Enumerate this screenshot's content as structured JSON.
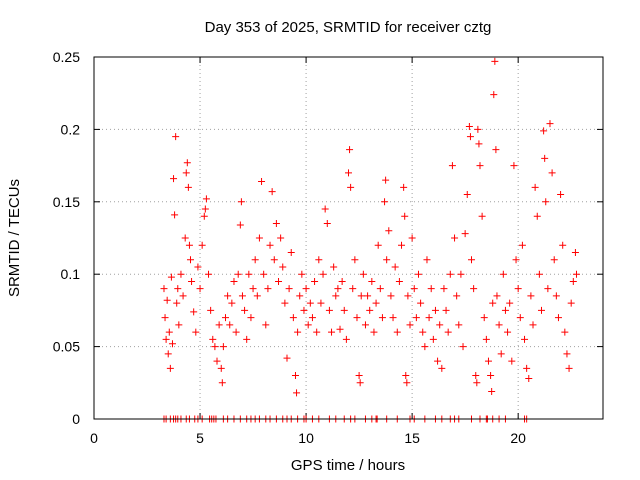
{
  "chart_data": {
    "type": "scatter",
    "title": "Day 353 of 2025, SRMTID for receiver cztg",
    "xlabel": "GPS time / hours",
    "ylabel": "SRMTID / TECUs",
    "xlim": [
      0,
      24
    ],
    "ylim": [
      0,
      0.25
    ],
    "x_ticks": [
      "0",
      "5",
      "10",
      "15",
      "20"
    ],
    "y_ticks": [
      "0",
      "0.05",
      "0.1",
      "0.15",
      "0.2",
      "0.25"
    ],
    "grid": true,
    "legend": "none",
    "marker": "plus",
    "color": "#ff0000",
    "series": [
      {
        "points": [
          [
            3.3,
            0.09
          ],
          [
            3.35,
            0.07
          ],
          [
            3.4,
            0.055
          ],
          [
            3.45,
            0.082
          ],
          [
            3.5,
            0.045
          ],
          [
            3.55,
            0.06
          ],
          [
            3.6,
            0.035
          ],
          [
            3.65,
            0.098
          ],
          [
            3.7,
            0.052
          ],
          [
            3.75,
            0.166
          ],
          [
            3.8,
            0.141
          ],
          [
            3.85,
            0.195
          ],
          [
            3.9,
            0.08
          ],
          [
            3.95,
            0.09
          ],
          [
            4.0,
            0.065
          ],
          [
            4.1,
            0.1
          ],
          [
            4.2,
            0.085
          ],
          [
            4.3,
            0.125
          ],
          [
            4.35,
            0.17
          ],
          [
            4.4,
            0.177
          ],
          [
            4.45,
            0.16
          ],
          [
            4.5,
            0.12
          ],
          [
            4.55,
            0.11
          ],
          [
            4.6,
            0.095
          ],
          [
            4.7,
            0.074
          ],
          [
            4.8,
            0.06
          ],
          [
            4.9,
            0.105
          ],
          [
            5.0,
            0.09
          ],
          [
            5.1,
            0.12
          ],
          [
            5.2,
            0.14
          ],
          [
            5.25,
            0.145
          ],
          [
            5.3,
            0.152
          ],
          [
            5.4,
            0.1
          ],
          [
            5.5,
            0.075
          ],
          [
            5.6,
            0.055
          ],
          [
            5.7,
            0.05
          ],
          [
            5.8,
            0.04
          ],
          [
            5.9,
            0.065
          ],
          [
            6.0,
            0.035
          ],
          [
            6.05,
            0.025
          ],
          [
            6.1,
            0.05
          ],
          [
            6.2,
            0.07
          ],
          [
            6.3,
            0.085
          ],
          [
            6.4,
            0.065
          ],
          [
            6.5,
            0.08
          ],
          [
            6.6,
            0.095
          ],
          [
            6.7,
            0.06
          ],
          [
            6.8,
            0.1
          ],
          [
            6.9,
            0.134
          ],
          [
            6.95,
            0.15
          ],
          [
            7.0,
            0.085
          ],
          [
            7.1,
            0.075
          ],
          [
            7.2,
            0.055
          ],
          [
            7.3,
            0.1
          ],
          [
            7.4,
            0.07
          ],
          [
            7.5,
            0.09
          ],
          [
            7.6,
            0.11
          ],
          [
            7.7,
            0.085
          ],
          [
            7.8,
            0.125
          ],
          [
            7.9,
            0.164
          ],
          [
            8.0,
            0.1
          ],
          [
            8.1,
            0.065
          ],
          [
            8.2,
            0.09
          ],
          [
            8.3,
            0.12
          ],
          [
            8.4,
            0.157
          ],
          [
            8.5,
            0.11
          ],
          [
            8.6,
            0.135
          ],
          [
            8.7,
            0.095
          ],
          [
            8.8,
            0.125
          ],
          [
            8.9,
            0.105
          ],
          [
            9.0,
            0.08
          ],
          [
            9.1,
            0.042
          ],
          [
            9.2,
            0.09
          ],
          [
            9.3,
            0.115
          ],
          [
            9.4,
            0.07
          ],
          [
            9.5,
            0.03
          ],
          [
            9.55,
            0.018
          ],
          [
            9.6,
            0.06
          ],
          [
            9.7,
            0.085
          ],
          [
            9.8,
            0.1
          ],
          [
            9.9,
            0.075
          ],
          [
            10.0,
            0.09
          ],
          [
            10.1,
            0.065
          ],
          [
            10.2,
            0.08
          ],
          [
            10.3,
            0.07
          ],
          [
            10.4,
            0.095
          ],
          [
            10.5,
            0.06
          ],
          [
            10.6,
            0.11
          ],
          [
            10.7,
            0.08
          ],
          [
            10.8,
            0.1
          ],
          [
            10.9,
            0.145
          ],
          [
            11.0,
            0.135
          ],
          [
            11.1,
            0.075
          ],
          [
            11.2,
            0.06
          ],
          [
            11.3,
            0.105
          ],
          [
            11.4,
            0.085
          ],
          [
            11.5,
            0.09
          ],
          [
            11.6,
            0.062
          ],
          [
            11.7,
            0.095
          ],
          [
            11.8,
            0.075
          ],
          [
            11.9,
            0.055
          ],
          [
            12.0,
            0.17
          ],
          [
            12.05,
            0.186
          ],
          [
            12.1,
            0.16
          ],
          [
            12.2,
            0.09
          ],
          [
            12.3,
            0.11
          ],
          [
            12.4,
            0.07
          ],
          [
            12.5,
            0.03
          ],
          [
            12.55,
            0.025
          ],
          [
            12.6,
            0.085
          ],
          [
            12.7,
            0.1
          ],
          [
            12.8,
            0.065
          ],
          [
            12.9,
            0.085
          ],
          [
            13.0,
            0.075
          ],
          [
            13.1,
            0.095
          ],
          [
            13.2,
            0.06
          ],
          [
            13.3,
            0.08
          ],
          [
            13.4,
            0.12
          ],
          [
            13.5,
            0.09
          ],
          [
            13.6,
            0.07
          ],
          [
            13.7,
            0.15
          ],
          [
            13.75,
            0.165
          ],
          [
            13.8,
            0.11
          ],
          [
            13.9,
            0.13
          ],
          [
            14.0,
            0.085
          ],
          [
            14.1,
            0.07
          ],
          [
            14.2,
            0.105
          ],
          [
            14.3,
            0.06
          ],
          [
            14.4,
            0.095
          ],
          [
            14.5,
            0.12
          ],
          [
            14.6,
            0.16
          ],
          [
            14.65,
            0.14
          ],
          [
            14.7,
            0.03
          ],
          [
            14.75,
            0.025
          ],
          [
            14.8,
            0.085
          ],
          [
            14.9,
            0.065
          ],
          [
            15.0,
            0.125
          ],
          [
            15.1,
            0.09
          ],
          [
            15.2,
            0.07
          ],
          [
            15.3,
            0.1
          ],
          [
            15.4,
            0.08
          ],
          [
            15.5,
            0.06
          ],
          [
            15.6,
            0.05
          ],
          [
            15.7,
            0.11
          ],
          [
            15.8,
            0.07
          ],
          [
            15.9,
            0.09
          ],
          [
            16.0,
            0.055
          ],
          [
            16.1,
            0.075
          ],
          [
            16.2,
            0.04
          ],
          [
            16.3,
            0.065
          ],
          [
            16.4,
            0.035
          ],
          [
            16.5,
            0.09
          ],
          [
            16.6,
            0.075
          ],
          [
            16.7,
            0.06
          ],
          [
            16.8,
            0.1
          ],
          [
            16.9,
            0.175
          ],
          [
            17.0,
            0.125
          ],
          [
            17.1,
            0.085
          ],
          [
            17.2,
            0.065
          ],
          [
            17.3,
            0.1
          ],
          [
            17.4,
            0.05
          ],
          [
            17.5,
            0.128
          ],
          [
            17.6,
            0.155
          ],
          [
            17.7,
            0.202
          ],
          [
            17.75,
            0.195
          ],
          [
            17.8,
            0.11
          ],
          [
            17.9,
            0.09
          ],
          [
            18.0,
            0.03
          ],
          [
            18.05,
            0.025
          ],
          [
            18.1,
            0.2
          ],
          [
            18.15,
            0.19
          ],
          [
            18.2,
            0.175
          ],
          [
            18.3,
            0.14
          ],
          [
            18.4,
            0.07
          ],
          [
            18.5,
            0.055
          ],
          [
            18.6,
            0.04
          ],
          [
            18.7,
            0.03
          ],
          [
            18.75,
            0.019
          ],
          [
            18.8,
            0.08
          ],
          [
            18.85,
            0.224
          ],
          [
            18.9,
            0.247
          ],
          [
            18.95,
            0.186
          ],
          [
            19.0,
            0.085
          ],
          [
            19.1,
            0.065
          ],
          [
            19.2,
            0.045
          ],
          [
            19.3,
            0.1
          ],
          [
            19.4,
            0.075
          ],
          [
            19.5,
            0.06
          ],
          [
            19.6,
            0.08
          ],
          [
            19.7,
            0.04
          ],
          [
            19.8,
            0.175
          ],
          [
            19.9,
            0.11
          ],
          [
            20.0,
            0.09
          ],
          [
            20.1,
            0.07
          ],
          [
            20.2,
            0.12
          ],
          [
            20.3,
            0.055
          ],
          [
            20.4,
            0.035
          ],
          [
            20.5,
            0.028
          ],
          [
            20.6,
            0.085
          ],
          [
            20.7,
            0.065
          ],
          [
            20.8,
            0.16
          ],
          [
            20.9,
            0.14
          ],
          [
            21.0,
            0.1
          ],
          [
            21.1,
            0.075
          ],
          [
            21.2,
            0.199
          ],
          [
            21.25,
            0.18
          ],
          [
            21.3,
            0.15
          ],
          [
            21.4,
            0.09
          ],
          [
            21.5,
            0.204
          ],
          [
            21.6,
            0.17
          ],
          [
            21.7,
            0.11
          ],
          [
            21.8,
            0.085
          ],
          [
            21.9,
            0.07
          ],
          [
            22.0,
            0.155
          ],
          [
            22.1,
            0.12
          ],
          [
            22.2,
            0.06
          ],
          [
            22.3,
            0.045
          ],
          [
            22.4,
            0.035
          ],
          [
            22.5,
            0.08
          ],
          [
            22.6,
            0.095
          ],
          [
            22.7,
            0.115
          ],
          [
            22.75,
            0.1
          ]
        ]
      },
      {
        "points": [
          [
            3.3,
            0
          ],
          [
            3.4,
            0
          ],
          [
            3.6,
            0
          ],
          [
            3.75,
            0
          ],
          [
            3.85,
            0
          ],
          [
            3.95,
            0
          ],
          [
            4.1,
            0
          ],
          [
            4.35,
            0
          ],
          [
            4.5,
            0
          ],
          [
            4.75,
            0
          ],
          [
            4.9,
            0
          ],
          [
            5.1,
            0
          ],
          [
            5.45,
            0
          ],
          [
            5.55,
            0
          ],
          [
            5.65,
            0
          ],
          [
            5.75,
            0
          ],
          [
            6.1,
            0
          ],
          [
            6.3,
            0
          ],
          [
            6.6,
            0
          ],
          [
            6.9,
            0
          ],
          [
            7.2,
            0
          ],
          [
            7.4,
            0
          ],
          [
            7.6,
            0
          ],
          [
            7.8,
            0
          ],
          [
            8.1,
            0
          ],
          [
            8.3,
            0
          ],
          [
            8.6,
            0
          ],
          [
            8.9,
            0
          ],
          [
            9.1,
            0
          ],
          [
            9.3,
            0
          ],
          [
            9.6,
            0
          ],
          [
            9.9,
            0
          ],
          [
            10.0,
            0
          ],
          [
            10.3,
            0
          ],
          [
            10.6,
            0
          ],
          [
            11.1,
            0
          ],
          [
            11.4,
            0
          ],
          [
            11.8,
            0
          ],
          [
            12.1,
            0
          ],
          [
            12.3,
            0
          ],
          [
            12.8,
            0
          ],
          [
            13.1,
            0
          ],
          [
            13.3,
            0
          ],
          [
            13.35,
            0
          ],
          [
            13.8,
            0
          ],
          [
            14.3,
            0
          ],
          [
            14.9,
            0
          ],
          [
            15.1,
            0
          ],
          [
            15.6,
            0
          ],
          [
            16.1,
            0
          ],
          [
            16.4,
            0
          ],
          [
            16.8,
            0
          ],
          [
            17.0,
            0
          ],
          [
            17.2,
            0
          ],
          [
            17.8,
            0
          ],
          [
            18.2,
            0
          ],
          [
            18.5,
            0
          ],
          [
            18.55,
            0
          ],
          [
            18.8,
            0
          ],
          [
            19.1,
            0
          ],
          [
            19.4,
            0
          ],
          [
            20.3,
            0
          ],
          [
            20.4,
            0
          ]
        ]
      }
    ]
  }
}
